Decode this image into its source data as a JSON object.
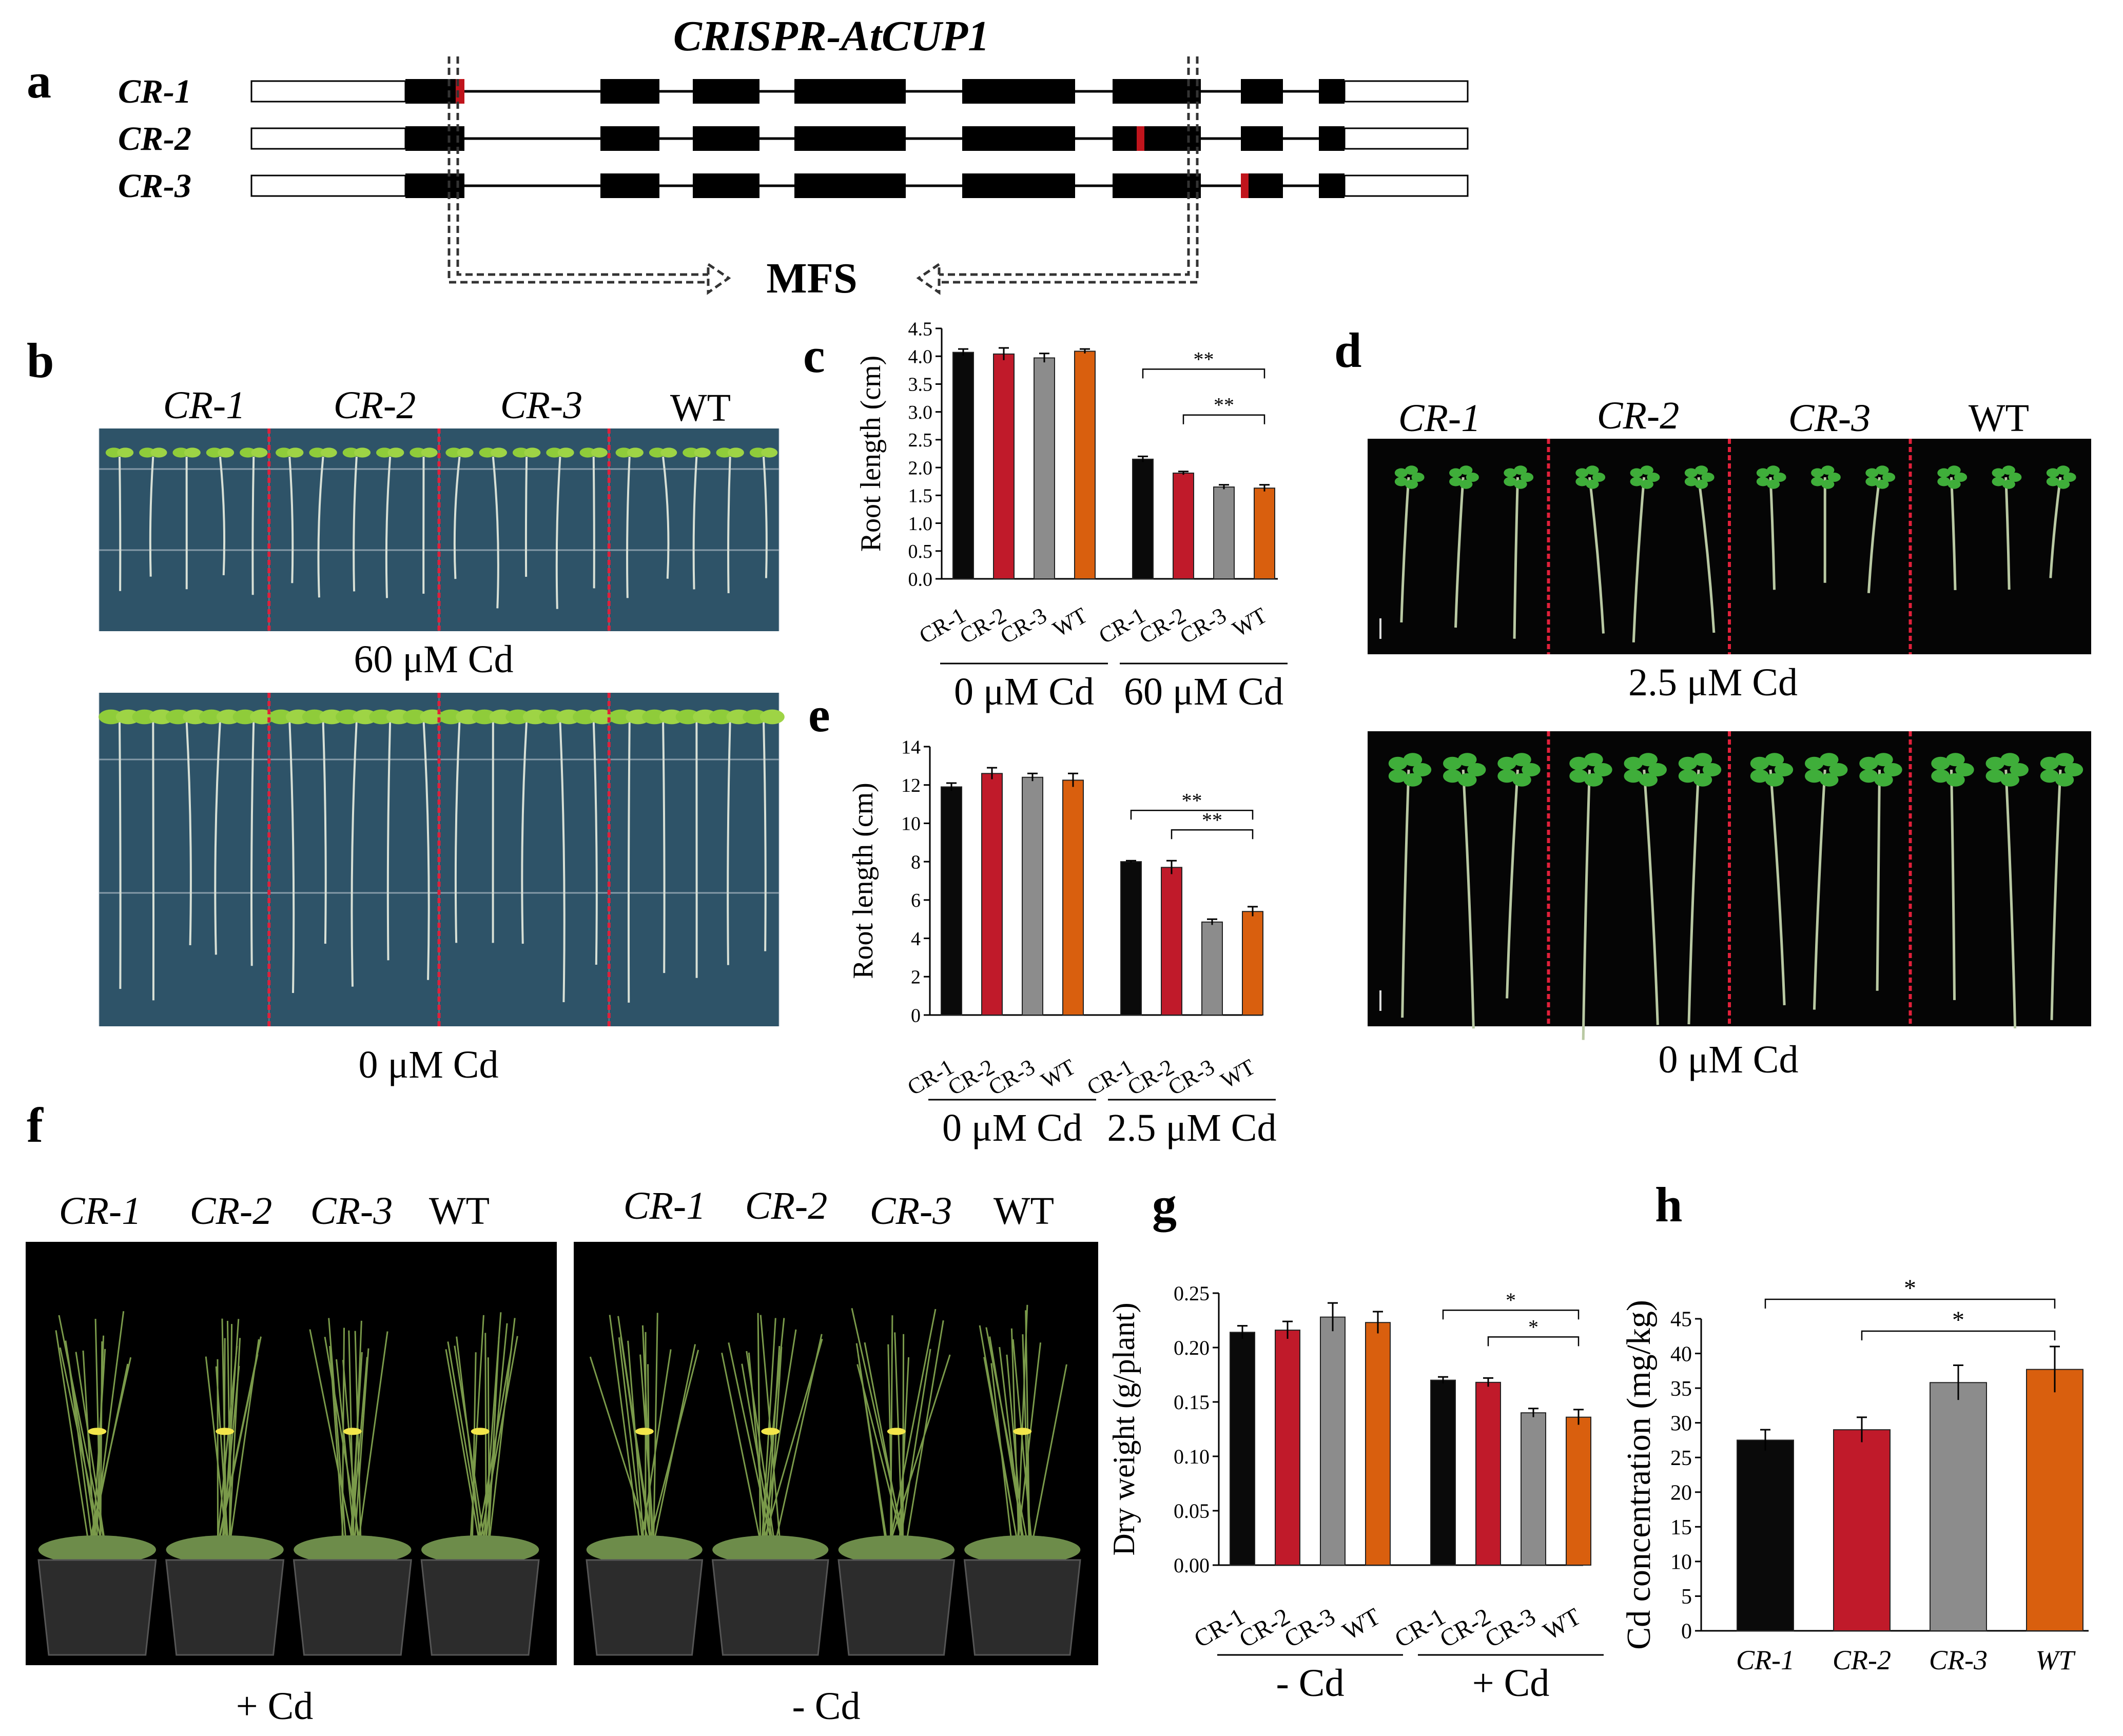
{
  "panels": {
    "a": "a",
    "b": "b",
    "c": "c",
    "d": "d",
    "e": "e",
    "f": "f",
    "g": "g",
    "h": "h"
  },
  "gene_title": "CRISPR-AtCUP1",
  "lines": [
    "CR-1",
    "CR-2",
    "CR-3"
  ],
  "mfs_label": "MFS",
  "genotypes": [
    "CR-1",
    "CR-2",
    "CR-3",
    "WT"
  ],
  "treatments": {
    "b_top": "60 μM Cd",
    "b_bottom": "0 μM Cd",
    "d_top": "2.5 μM Cd",
    "d_bottom": "0 μM Cd",
    "f_left": "+ Cd",
    "f_right": "- Cd"
  },
  "colors": {
    "CR-1": "#0a0a0a",
    "CR-2": "#c01a2a",
    "CR-3": "#8c8c8c",
    "WT": "#d95f0e",
    "mutation": "#c0141c",
    "agar": "#2e5368",
    "divider": "#e0203a"
  },
  "chart_data": [
    {
      "id": "c",
      "type": "bar",
      "ylabel": "Root length (cm)",
      "ylim": [
        0,
        4.5
      ],
      "yticks": [
        "0.0",
        "0.5",
        "1.0",
        "1.5",
        "2.0",
        "2.5",
        "3.0",
        "3.5",
        "4.0",
        "4.5"
      ],
      "groups": [
        {
          "name": "0 μM Cd",
          "categories": [
            "CR-1",
            "CR-2",
            "CR-3",
            "WT"
          ],
          "values": [
            4.07,
            4.04,
            3.97,
            4.09
          ],
          "errors": [
            0.06,
            0.11,
            0.08,
            0.04
          ]
        },
        {
          "name": "60 μM Cd",
          "categories": [
            "CR-1",
            "CR-2",
            "CR-3",
            "WT"
          ],
          "values": [
            2.15,
            1.9,
            1.65,
            1.63
          ],
          "errors": [
            0.05,
            0.03,
            0.04,
            0.06
          ]
        }
      ],
      "significance": [
        {
          "label": "**",
          "from": "CR-1",
          "to": "WT"
        },
        {
          "label": "**",
          "from": "CR-2",
          "to": "WT"
        }
      ]
    },
    {
      "id": "e",
      "type": "bar",
      "ylabel": "Root length (cm)",
      "ylim": [
        0,
        14
      ],
      "yticks": [
        "0",
        "2",
        "4",
        "6",
        "8",
        "10",
        "12",
        "14"
      ],
      "groups": [
        {
          "name": "0 μM Cd",
          "categories": [
            "CR-1",
            "CR-2",
            "CR-3",
            "WT"
          ],
          "values": [
            11.9,
            12.6,
            12.4,
            12.25
          ],
          "errors": [
            0.2,
            0.3,
            0.2,
            0.35
          ]
        },
        {
          "name": "2.5 μM Cd",
          "categories": [
            "CR-1",
            "CR-2",
            "CR-3",
            "WT"
          ],
          "values": [
            8.0,
            7.7,
            4.85,
            5.4
          ],
          "errors": [
            0.05,
            0.35,
            0.15,
            0.25
          ]
        }
      ],
      "significance": [
        {
          "label": "**",
          "from": "CR-1",
          "to": "WT"
        },
        {
          "label": "**",
          "from": "CR-2",
          "to": "WT"
        }
      ]
    },
    {
      "id": "g",
      "type": "bar",
      "ylabel": "Dry weight (g/plant)",
      "ylim": [
        0,
        0.25
      ],
      "yticks": [
        "0.00",
        "0.05",
        "0.10",
        "0.15",
        "0.20",
        "0.25"
      ],
      "groups": [
        {
          "name": "- Cd",
          "categories": [
            "CR-1",
            "CR-2",
            "CR-3",
            "WT"
          ],
          "values": [
            0.214,
            0.216,
            0.228,
            0.223
          ],
          "errors": [
            0.006,
            0.008,
            0.013,
            0.01
          ]
        },
        {
          "name": "+ Cd",
          "categories": [
            "CR-1",
            "CR-2",
            "CR-3",
            "WT"
          ],
          "values": [
            0.17,
            0.168,
            0.14,
            0.136
          ],
          "errors": [
            0.003,
            0.004,
            0.004,
            0.007
          ]
        }
      ],
      "significance": [
        {
          "label": "*",
          "from": "CR-1",
          "to": "WT"
        },
        {
          "label": "*",
          "from": "CR-2",
          "to": "WT"
        }
      ]
    },
    {
      "id": "h",
      "type": "bar",
      "ylabel": "Cd concentration (mg/kg)",
      "ylim": [
        0,
        45
      ],
      "yticks": [
        "0",
        "5",
        "10",
        "15",
        "20",
        "25",
        "30",
        "35",
        "40",
        "45"
      ],
      "groups": [
        {
          "name": "",
          "categories": [
            "CR-1",
            "CR-2",
            "CR-3",
            "WT"
          ],
          "values": [
            27.5,
            29.0,
            35.8,
            37.7
          ],
          "errors": [
            1.5,
            1.8,
            2.5,
            3.3
          ]
        }
      ],
      "significance": [
        {
          "label": "*",
          "from": "CR-1",
          "to": "WT"
        },
        {
          "label": "*",
          "from": "CR-2",
          "to": "WT"
        }
      ]
    }
  ]
}
